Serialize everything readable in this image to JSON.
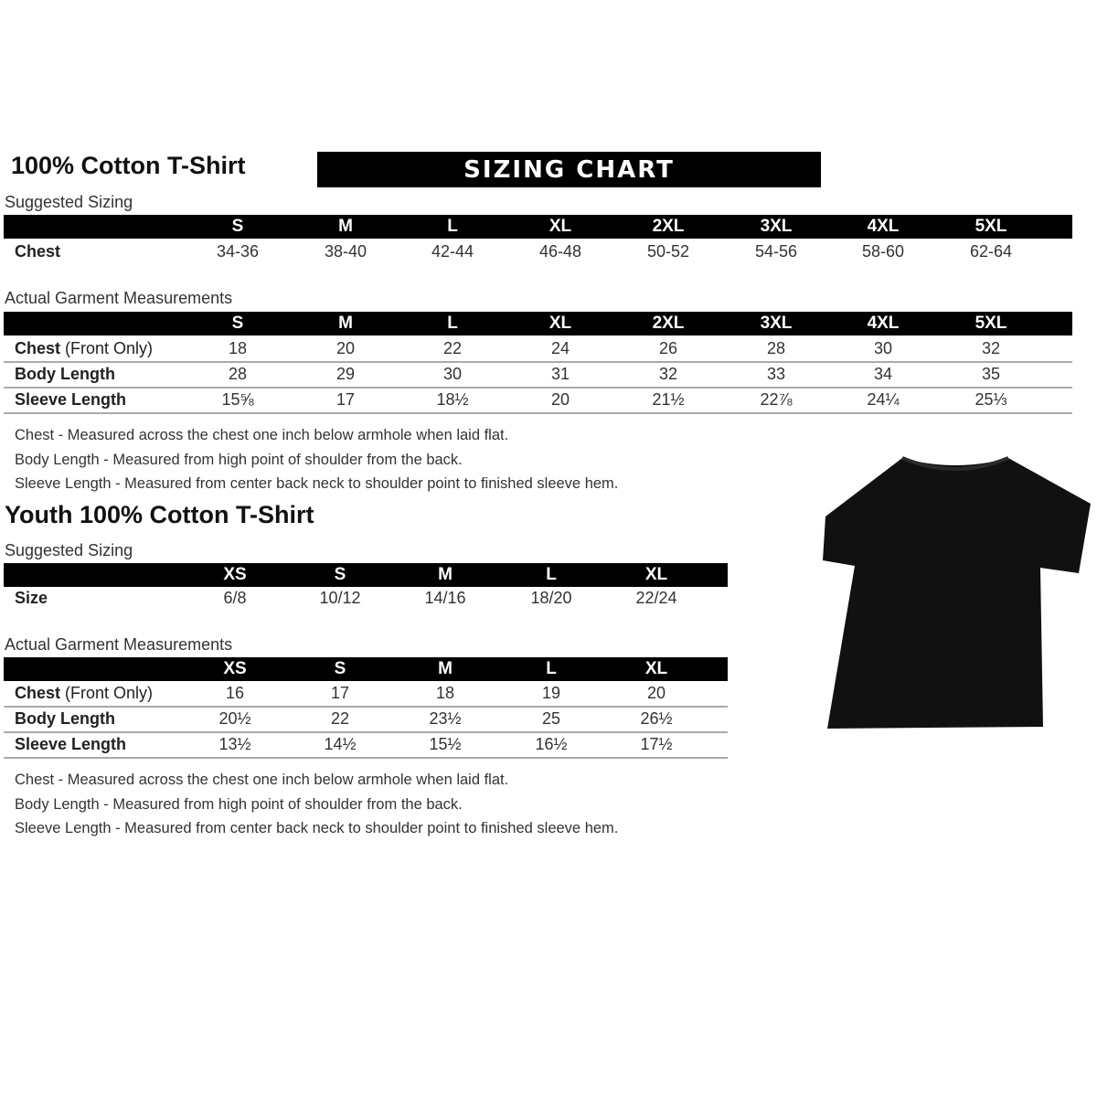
{
  "adult": {
    "title": "100% Cotton T-Shirt",
    "banner": "SIZING CHART",
    "suggested_label": "Suggested Sizing",
    "sizes": [
      "S",
      "M",
      "L",
      "XL",
      "2XL",
      "3XL",
      "4XL",
      "5XL"
    ],
    "suggested_rows": [
      {
        "label": "Chest",
        "values": [
          "34-36",
          "38-40",
          "42-44",
          "46-48",
          "50-52",
          "54-56",
          "58-60",
          "62-64"
        ]
      }
    ],
    "actual_label": "Actual Garment Measurements",
    "actual_rows": [
      {
        "label": "Chest",
        "label_note": " (Front Only)",
        "values": [
          "18",
          "20",
          "22",
          "24",
          "26",
          "28",
          "30",
          "32"
        ]
      },
      {
        "label": "Body Length",
        "values": [
          "28",
          "29",
          "30",
          "31",
          "32",
          "33",
          "34",
          "35"
        ]
      },
      {
        "label": "Sleeve Length",
        "values": [
          "15⅝",
          "17",
          "18½",
          "20",
          "21½",
          "22⅞",
          "24¼",
          "25⅓"
        ]
      }
    ],
    "notes": [
      "Chest - Measured across the chest one inch below armhole when laid flat.",
      "Body Length - Measured from high point of shoulder from the back.",
      "Sleeve Length - Measured from center back neck to shoulder point to finished sleeve hem."
    ]
  },
  "youth": {
    "title": "Youth 100% Cotton T-Shirt",
    "suggested_label": "Suggested Sizing",
    "sizes": [
      "XS",
      "S",
      "M",
      "L",
      "XL"
    ],
    "suggested_rows": [
      {
        "label": "Size",
        "values": [
          "6/8",
          "10/12",
          "14/16",
          "18/20",
          "22/24"
        ]
      }
    ],
    "actual_label": "Actual Garment Measurements",
    "actual_rows": [
      {
        "label": "Chest",
        "label_note": " (Front Only)",
        "values": [
          "16",
          "17",
          "18",
          "19",
          "20"
        ]
      },
      {
        "label": "Body Length",
        "values": [
          "20½",
          "22",
          "23½",
          "25",
          "26½"
        ]
      },
      {
        "label": "Sleeve Length",
        "values": [
          "13½",
          "14½",
          "15½",
          "16½",
          "17½"
        ]
      }
    ],
    "notes": [
      "Chest - Measured across the chest one inch below armhole when laid flat.",
      "Body Length - Measured from high point of shoulder from the back.",
      "Sleeve Length - Measured from center back neck to shoulder point to finished sleeve hem."
    ]
  },
  "image": {
    "icon": "tshirt-icon",
    "color": "#111111"
  }
}
